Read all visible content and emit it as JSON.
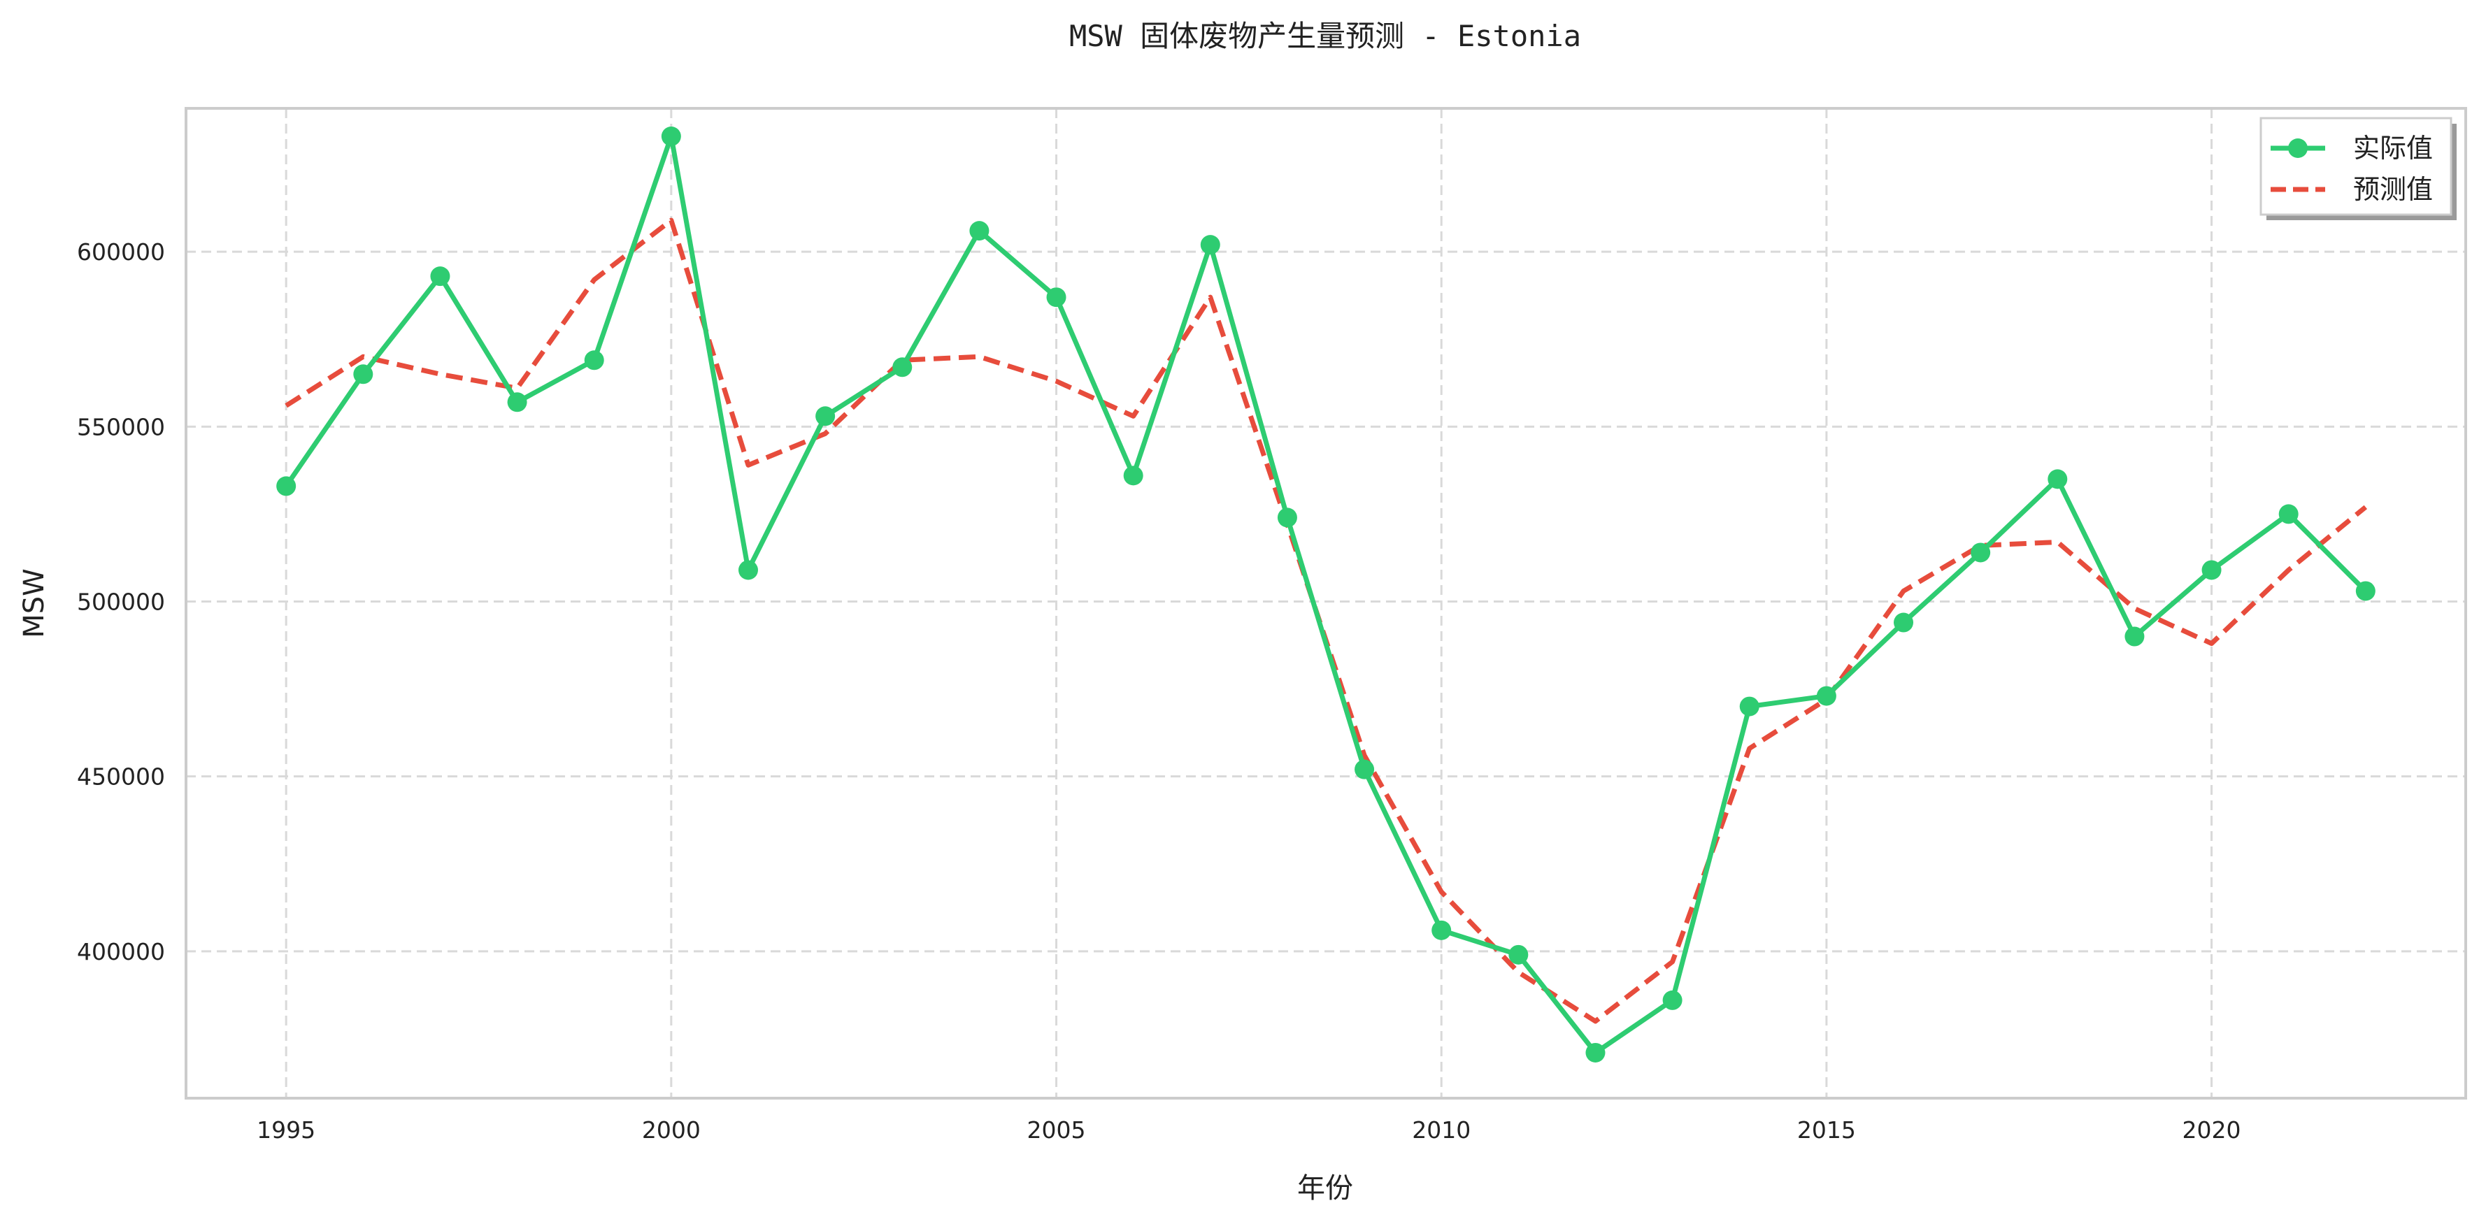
{
  "chart_data": {
    "type": "line",
    "title": "MSW 固体废物产生量预测 - Estonia",
    "xlabel": "年份",
    "ylabel": "MSW",
    "xlim": [
      1993.7,
      2023.3
    ],
    "ylim": [
      358000,
      641000
    ],
    "grid": true,
    "legend_position": "top-right",
    "x_ticks": [
      1995,
      2000,
      2005,
      2010,
      2015,
      2020
    ],
    "y_ticks": [
      400000,
      450000,
      500000,
      550000,
      600000
    ],
    "x": [
      1995,
      1996,
      1997,
      1998,
      1999,
      2000,
      2001,
      2002,
      2003,
      2004,
      2005,
      2006,
      2007,
      2008,
      2009,
      2010,
      2011,
      2012,
      2013,
      2014,
      2015,
      2016,
      2017,
      2018,
      2019,
      2020,
      2021,
      2022
    ],
    "series": [
      {
        "name": "实际值",
        "color": "#2ecc71",
        "style": "solid-marker",
        "values": [
          533000,
          565000,
          593000,
          557000,
          569000,
          633000,
          509000,
          553000,
          567000,
          606000,
          587000,
          536000,
          602000,
          524000,
          452000,
          406000,
          399000,
          371000,
          386000,
          470000,
          473000,
          494000,
          514000,
          535000,
          490000,
          509000,
          525000,
          503000
        ]
      },
      {
        "name": "预测值",
        "color": "#e74c3c",
        "style": "dashed",
        "values": [
          556000,
          570000,
          565000,
          561000,
          592000,
          609000,
          539000,
          548000,
          569000,
          570000,
          563000,
          553000,
          587000,
          522000,
          456000,
          417000,
          394000,
          380000,
          397000,
          458000,
          472000,
          503000,
          516000,
          517000,
          498000,
          488000,
          509000,
          527000
        ]
      }
    ]
  }
}
